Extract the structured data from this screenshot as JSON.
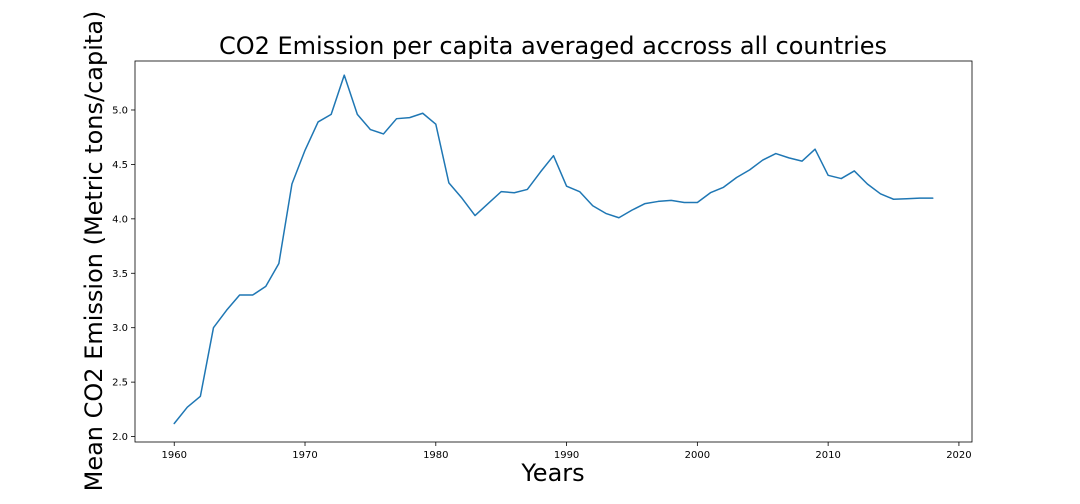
{
  "chart_data": {
    "type": "line",
    "title": "CO2 Emission per capita averaged accross all countries",
    "xlabel": "Years",
    "ylabel": "Mean CO2 Emission (Metric tons/capita)",
    "xlim": [
      1957,
      2021
    ],
    "ylim": [
      1.95,
      5.45
    ],
    "xticks": [
      1960,
      1970,
      1980,
      1990,
      2000,
      2010,
      2020
    ],
    "yticks": [
      2.0,
      2.5,
      3.0,
      3.5,
      4.0,
      4.5,
      5.0
    ],
    "grid": false,
    "line_color": "#1f77b4",
    "series": [
      {
        "x": [
          1960,
          1961,
          1962,
          1963,
          1964,
          1965,
          1966,
          1967,
          1968,
          1969,
          1970,
          1971,
          1972,
          1973,
          1974,
          1975,
          1976,
          1977,
          1978,
          1979,
          1980,
          1981,
          1982,
          1983,
          1984,
          1985,
          1986,
          1987,
          1988,
          1989,
          1990,
          1991,
          1992,
          1993,
          1994,
          1995,
          1996,
          1997,
          1998,
          1999,
          2000,
          2001,
          2002,
          2003,
          2004,
          2005,
          2006,
          2007,
          2008,
          2009,
          2010,
          2011,
          2012,
          2013,
          2014,
          2015,
          2016,
          2017,
          2018
        ],
        "values": [
          2.12,
          2.27,
          2.37,
          3.0,
          3.16,
          3.3,
          3.3,
          3.38,
          3.59,
          4.32,
          4.63,
          4.89,
          4.96,
          5.32,
          4.96,
          4.82,
          4.78,
          4.92,
          4.93,
          4.97,
          4.87,
          4.33,
          4.19,
          4.03,
          4.14,
          4.25,
          4.24,
          4.27,
          4.43,
          4.58,
          4.3,
          4.25,
          4.12,
          4.05,
          4.01,
          4.08,
          4.14,
          4.16,
          4.17,
          4.15,
          4.15,
          4.24,
          4.29,
          4.38,
          4.45,
          4.54,
          4.6,
          4.56,
          4.53,
          4.64,
          4.4,
          4.37,
          4.44,
          4.32,
          4.23,
          4.18,
          4.185,
          4.19,
          4.19
        ]
      }
    ]
  }
}
